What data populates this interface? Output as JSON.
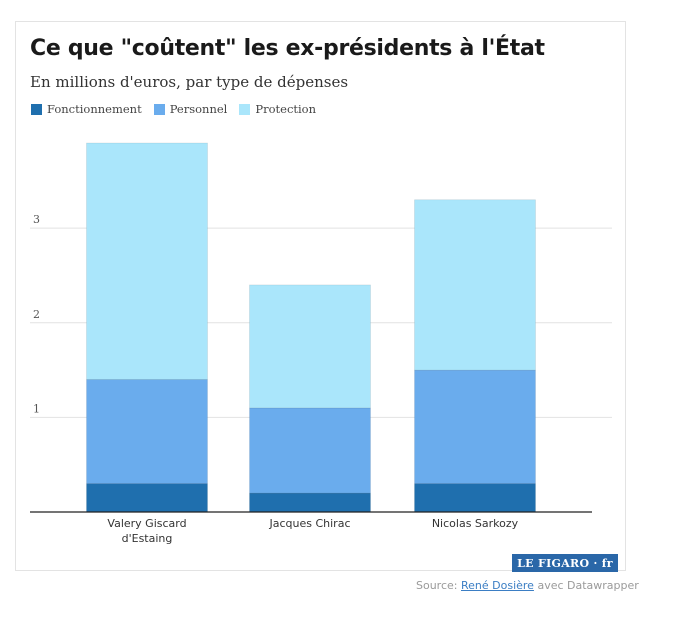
{
  "chart_data": {
    "type": "bar",
    "stacked": true,
    "title": "Ce que \"coûtent\" les ex-présidents à l'État",
    "subtitle": "En millions d'euros, par type de dépenses",
    "categories": [
      "Valery Giscard d'Estaing",
      "Jacques Chirac",
      "Nicolas Sarkozy"
    ],
    "category_lines": [
      [
        "Valery Giscard",
        "d'Estaing"
      ],
      [
        "Jacques Chirac"
      ],
      [
        "Nicolas Sarkozy"
      ]
    ],
    "series": [
      {
        "name": "Fonctionnement",
        "color": "#1f6fae",
        "values": [
          0.3,
          0.2,
          0.3
        ]
      },
      {
        "name": "Personnel",
        "color": "#6aaced",
        "values": [
          1.1,
          0.9,
          1.2
        ]
      },
      {
        "name": "Protection",
        "color": "#aae6fb",
        "values": [
          2.5,
          1.3,
          1.8
        ]
      }
    ],
    "ylim": [
      0,
      3.9
    ],
    "yticks": [
      1,
      2,
      3
    ],
    "ytick_labels": [
      "1",
      "2",
      "3"
    ],
    "grid": true,
    "legend_position": "top-left"
  },
  "source": {
    "prefix": "Source: ",
    "link": "René Dosière",
    "suffix": " avec Datawrapper"
  },
  "logo": {
    "text": "LE FIGARO · fr"
  }
}
